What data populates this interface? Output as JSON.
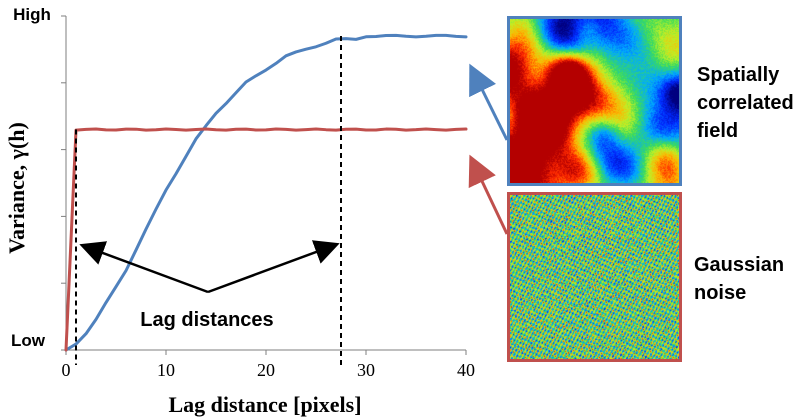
{
  "chart_data": {
    "type": "line",
    "xlabel": "Lag distance [pixels]",
    "ylabel": "Variance, γ(h)",
    "x_ticks": [
      "0",
      "10",
      "20",
      "30",
      "40"
    ],
    "y_ticks": [
      "Low",
      "High"
    ],
    "xlim": [
      0,
      40
    ],
    "ylim": [
      0,
      1
    ],
    "grid": false,
    "series": [
      {
        "x": [
          0,
          1,
          2,
          3,
          4,
          5,
          6,
          7,
          8,
          9,
          10,
          11,
          12,
          13,
          14,
          15,
          16,
          17,
          18,
          19,
          20,
          21,
          22,
          23,
          24,
          25,
          26,
          27,
          28,
          29,
          30,
          31,
          32,
          33,
          34,
          35,
          36,
          37,
          38,
          39,
          40
        ],
        "y": [
          0.0,
          0.02,
          0.05,
          0.09,
          0.14,
          0.19,
          0.24,
          0.3,
          0.36,
          0.42,
          0.48,
          0.53,
          0.58,
          0.63,
          0.67,
          0.71,
          0.74,
          0.77,
          0.8,
          0.82,
          0.84,
          0.86,
          0.88,
          0.89,
          0.9,
          0.91,
          0.92,
          0.93,
          0.93,
          0.93,
          0.94,
          0.94,
          0.94,
          0.94,
          0.94,
          0.94,
          0.94,
          0.94,
          0.94,
          0.94,
          0.94
        ],
        "color": "#4f81bd"
      },
      {
        "x": [
          0,
          1,
          2,
          3,
          4,
          5,
          6,
          7,
          8,
          9,
          10,
          11,
          12,
          13,
          14,
          15,
          16,
          17,
          18,
          19,
          20,
          21,
          22,
          23,
          24,
          25,
          26,
          27,
          28,
          29,
          30,
          31,
          32,
          33,
          34,
          35,
          36,
          37,
          38,
          39,
          40
        ],
        "y": [
          0.0,
          0.66,
          0.66,
          0.66,
          0.66,
          0.66,
          0.66,
          0.66,
          0.66,
          0.66,
          0.66,
          0.66,
          0.66,
          0.66,
          0.66,
          0.66,
          0.66,
          0.66,
          0.66,
          0.66,
          0.66,
          0.66,
          0.66,
          0.66,
          0.66,
          0.66,
          0.66,
          0.66,
          0.66,
          0.66,
          0.66,
          0.66,
          0.66,
          0.66,
          0.66,
          0.66,
          0.66,
          0.66,
          0.66,
          0.66,
          0.66
        ],
        "color": "#c0504d"
      }
    ],
    "vertical_markers": [
      {
        "x": 1
      },
      {
        "x": 27.5
      }
    ]
  },
  "annotations": {
    "lag_distances": "Lag distances",
    "spatial_label_line1": "Spatially",
    "spatial_label_line2": "correlated",
    "spatial_label_line3": "field",
    "gaussian_label_line1": "Gaussian",
    "gaussian_label_line2": "noise"
  },
  "images": {
    "spatial_field_image": "spatially correlated field heatmap",
    "gaussian_noise_image": "gaussian noise heatmap"
  },
  "colors": {
    "blue": "#4f81bd",
    "red": "#c0504d",
    "black": "#000000",
    "axis": "#7f7f7f"
  }
}
